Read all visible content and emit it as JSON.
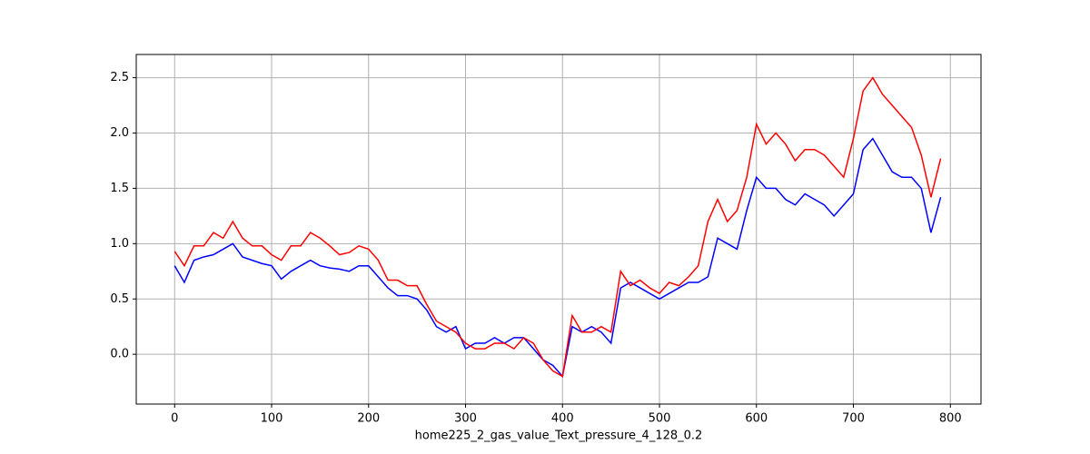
{
  "chart_data": {
    "type": "line",
    "xlabel": "home225_2_gas_value_Text_pressure_4_128_0.2",
    "x": [
      0,
      10,
      20,
      30,
      40,
      50,
      60,
      70,
      80,
      90,
      100,
      110,
      120,
      130,
      140,
      150,
      160,
      170,
      180,
      190,
      200,
      210,
      220,
      230,
      240,
      250,
      260,
      270,
      280,
      290,
      300,
      310,
      320,
      330,
      340,
      350,
      360,
      370,
      380,
      390,
      400,
      410,
      420,
      430,
      440,
      450,
      460,
      470,
      480,
      490,
      500,
      510,
      520,
      530,
      540,
      550,
      560,
      570,
      580,
      590,
      600,
      610,
      620,
      630,
      640,
      650,
      660,
      670,
      680,
      690,
      700,
      710,
      720,
      730,
      740,
      750,
      760,
      770,
      780,
      790
    ],
    "series": [
      {
        "color": "#0000ff",
        "values": [
          0.8,
          0.65,
          0.85,
          0.88,
          0.9,
          0.95,
          1.0,
          0.88,
          0.85,
          0.82,
          0.8,
          0.68,
          0.75,
          0.8,
          0.85,
          0.8,
          0.78,
          0.77,
          0.75,
          0.8,
          0.8,
          0.7,
          0.6,
          0.53,
          0.53,
          0.5,
          0.4,
          0.25,
          0.2,
          0.25,
          0.05,
          0.1,
          0.1,
          0.15,
          0.1,
          0.15,
          0.15,
          0.05,
          -0.05,
          -0.1,
          -0.2,
          0.25,
          0.2,
          0.25,
          0.2,
          0.1,
          0.6,
          0.65,
          0.6,
          0.55,
          0.5,
          0.55,
          0.6,
          0.65,
          0.65,
          0.7,
          1.05,
          1.0,
          0.95,
          1.3,
          1.6,
          1.5,
          1.5,
          1.4,
          1.35,
          1.45,
          1.4,
          1.35,
          1.25,
          1.35,
          1.45,
          1.85,
          1.95,
          1.8,
          1.65,
          1.6,
          1.6,
          1.5,
          1.1,
          1.42
        ]
      },
      {
        "color": "#ff0000",
        "values": [
          0.93,
          0.8,
          0.98,
          0.98,
          1.1,
          1.05,
          1.2,
          1.05,
          0.98,
          0.98,
          0.9,
          0.85,
          0.98,
          0.98,
          1.1,
          1.05,
          0.98,
          0.9,
          0.92,
          0.98,
          0.95,
          0.85,
          0.67,
          0.67,
          0.62,
          0.62,
          0.45,
          0.3,
          0.25,
          0.2,
          0.1,
          0.05,
          0.05,
          0.1,
          0.1,
          0.05,
          0.15,
          0.1,
          -0.05,
          -0.15,
          -0.2,
          0.35,
          0.2,
          0.2,
          0.25,
          0.2,
          0.75,
          0.62,
          0.67,
          0.6,
          0.55,
          0.65,
          0.62,
          0.7,
          0.8,
          1.2,
          1.4,
          1.2,
          1.3,
          1.6,
          2.08,
          1.9,
          2.0,
          1.9,
          1.75,
          1.85,
          1.85,
          1.8,
          1.7,
          1.6,
          1.95,
          2.38,
          2.5,
          2.35,
          2.25,
          2.15,
          2.05,
          1.8,
          1.42,
          1.77
        ]
      }
    ],
    "xlim": [
      -39.6,
      831.6
    ],
    "ylim": [
      -0.45,
      2.71
    ],
    "xticks": [
      0,
      100,
      200,
      300,
      400,
      500,
      600,
      700,
      800
    ],
    "yticks": [
      {
        "value": 0,
        "label": "0.0"
      },
      {
        "value": 0.5,
        "label": "0.5"
      },
      {
        "value": 1,
        "label": "1.0"
      },
      {
        "value": 1.5,
        "label": "1.5"
      },
      {
        "value": 2,
        "label": "2.0"
      },
      {
        "value": 2.5,
        "label": "2.5"
      }
    ],
    "grid": true
  }
}
